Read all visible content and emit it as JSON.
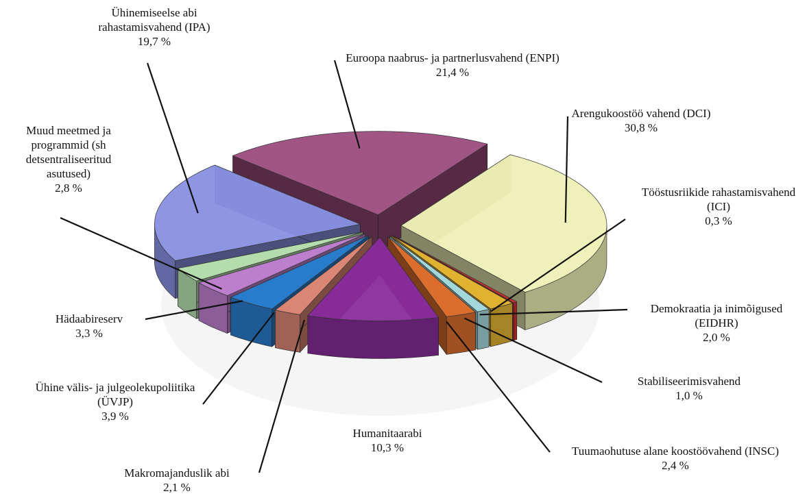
{
  "chart_data": {
    "type": "pie",
    "categories": [
      "Euroopa naabrus- ja partnerlusvahend (ENPI)",
      "Arengukoostöö vahend (DCI)",
      "Tööstusriikide rahastamisvahend (ICI)",
      "Demokraatia ja inimõigused (EIDHR)",
      "Stabiliseerimisvahend",
      "Tuumaohutuse alane koostöövahend (INSC)",
      "Humanitaarabi",
      "Makromajanduslik abi",
      "Ühine välis- ja julgeolekupoliitika (ÜVJP)",
      "Hädaabireserv",
      "Muud meetmed ja programmid (sh detsentraliseeritud asutused)",
      "Ühinemiseelse abi rahastamisvahend (IPA)"
    ],
    "values": [
      21.4,
      30.8,
      0.3,
      2.0,
      1.0,
      2.4,
      10.3,
      2.1,
      3.9,
      3.3,
      2.8,
      19.7
    ],
    "value_labels": [
      "21,4 %",
      "30,8 %",
      "0,3 %",
      "2,0 %",
      "1,0 %",
      "2,4 %",
      "10,3 %",
      "2,1 %",
      "3,9 %",
      "3,3 %",
      "2,8 %",
      "19,7 %"
    ],
    "colors": [
      "#9c4c7e",
      "#eef0b6",
      "#d03232",
      "#e6b632",
      "#a6dce0",
      "#e0702e",
      "#8a2c9c",
      "#e08878",
      "#2a7ed0",
      "#c282d2",
      "#b8e2b0",
      "#8890e2"
    ]
  }
}
